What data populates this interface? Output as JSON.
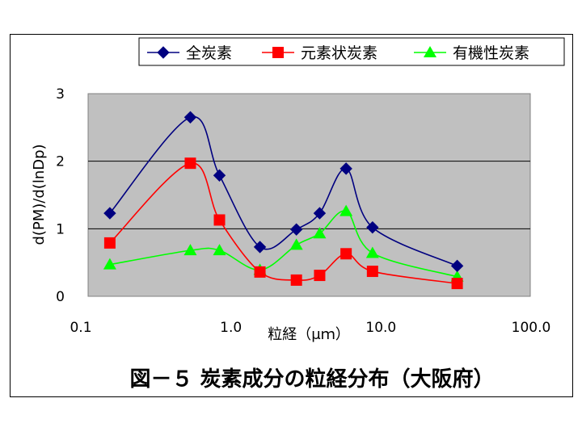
{
  "chart_data": {
    "type": "line",
    "title": "図－５ 炭素成分の粒経分布（大阪府）",
    "xlabel": "粒経（μｍ）",
    "ylabel": "d(PM)/d(lnDp)",
    "xscale": "log",
    "xlim": [
      0.1,
      100.0
    ],
    "ylim": [
      0,
      3
    ],
    "x_tick_labels": [
      "0.1",
      "1.0",
      "10.0",
      "100.0"
    ],
    "x_ticks": [
      0.1,
      1.0,
      10.0,
      100.0
    ],
    "y_tick_labels": [
      "0",
      "1",
      "2",
      "3"
    ],
    "y_ticks": [
      0,
      1,
      2,
      3
    ],
    "grid": true,
    "legend_position": "top",
    "x": [
      0.16,
      0.55,
      0.86,
      1.6,
      2.8,
      4.0,
      6.0,
      9.0,
      33.0
    ],
    "series": [
      {
        "name": "全炭素",
        "marker": "diamond",
        "color": "#000080",
        "values": [
          1.23,
          2.65,
          1.79,
          0.73,
          0.99,
          1.23,
          1.89,
          1.02,
          0.45
        ]
      },
      {
        "name": "元素状炭素",
        "marker": "square",
        "color": "#ff0000",
        "values": [
          0.79,
          1.97,
          1.13,
          0.36,
          0.24,
          0.31,
          0.63,
          0.37,
          0.19
        ]
      },
      {
        "name": "有機性炭素",
        "marker": "triangle",
        "color": "#00ff00",
        "values": [
          0.47,
          0.68,
          0.68,
          0.39,
          0.76,
          0.93,
          1.26,
          0.64,
          0.29
        ]
      }
    ]
  }
}
